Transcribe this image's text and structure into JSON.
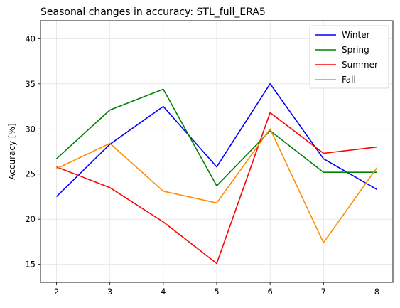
{
  "chart_data": {
    "type": "line",
    "title": "Seasonal changes in accuracy: STL_full_ERA5",
    "xlabel": "",
    "ylabel": "Accuracy [%]",
    "x": [
      2,
      3,
      4,
      5,
      6,
      7,
      8
    ],
    "xlim": [
      1.7,
      8.3
    ],
    "ylim": [
      13,
      42
    ],
    "xticks": [
      2,
      3,
      4,
      5,
      6,
      7,
      8
    ],
    "yticks": [
      15,
      20,
      25,
      30,
      35,
      40
    ],
    "grid": true,
    "legend_position": "top-right",
    "series": [
      {
        "name": "Winter",
        "color": "#0000ff",
        "values": [
          22.5,
          28.3,
          32.5,
          25.8,
          35.0,
          26.7,
          23.3
        ]
      },
      {
        "name": "Spring",
        "color": "#008000",
        "values": [
          26.7,
          32.1,
          34.4,
          23.7,
          29.8,
          25.2,
          25.2
        ]
      },
      {
        "name": "Summer",
        "color": "#ff0000",
        "values": [
          25.8,
          23.5,
          19.7,
          15.1,
          31.8,
          27.3,
          28.0
        ]
      },
      {
        "name": "Fall",
        "color": "#ff8c00",
        "values": [
          25.6,
          28.4,
          23.1,
          21.8,
          30.0,
          17.4,
          25.7
        ]
      }
    ]
  }
}
